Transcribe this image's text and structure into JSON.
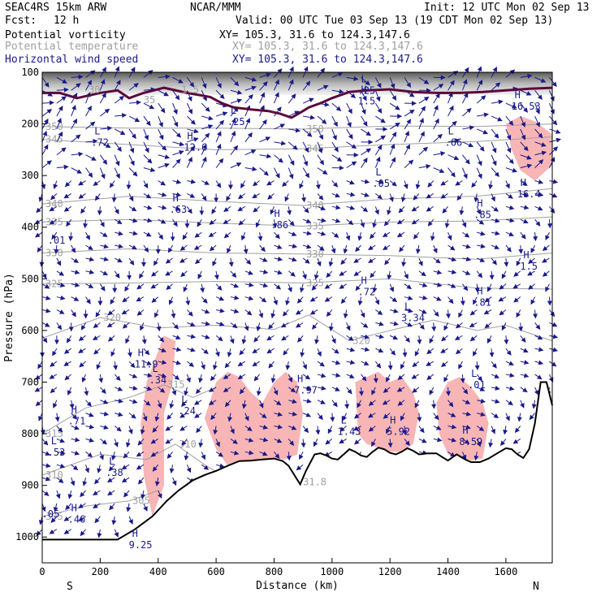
{
  "header": {
    "model": "SEAC4RS 15km ARW",
    "center": "NCAR/MMM",
    "init": "Init: 12 UTC Mon 02 Sep 13",
    "fcst_label": "Fcst:",
    "fcst_value": "12 h",
    "valid": "Valid: 00 UTC Tue 03 Sep 13 (19 CDT Mon 02 Sep 13)"
  },
  "fields": [
    {
      "name": "Potential vorticity",
      "xy": "XY= 105.3, 31.6 to 124.3,147.6",
      "color": "#000000"
    },
    {
      "name": "Potential temperature",
      "xy": "XY= 105.3, 31.6 to 124.3,147.6",
      "color": "#a0a0a0"
    },
    {
      "name": "Horizontal wind speed",
      "xy": "XY= 105.3, 31.6 to 124.3,147.6",
      "color": "#1a1a8c"
    }
  ],
  "chart_data": {
    "type": "cross-section",
    "xlabel": "Distance (km)",
    "ylabel": "Pressure (hPa)",
    "xlim": [
      0,
      1760
    ],
    "ylim": [
      1050,
      100
    ],
    "x_ticks": [
      "0",
      "200",
      "400",
      "600",
      "800",
      "1000",
      "1200",
      "1400",
      "1600"
    ],
    "y_ticks": [
      "100",
      "200",
      "300",
      "400",
      "500",
      "600",
      "700",
      "800",
      "900",
      "1000"
    ],
    "left_end": "S",
    "right_end": "N",
    "terrain": [
      [
        0,
        1005
      ],
      [
        80,
        1005
      ],
      [
        160,
        1005
      ],
      [
        260,
        1005
      ],
      [
        320,
        985
      ],
      [
        380,
        960
      ],
      [
        430,
        930
      ],
      [
        470,
        910
      ],
      [
        520,
        890
      ],
      [
        560,
        880
      ],
      [
        600,
        872
      ],
      [
        640,
        862
      ],
      [
        680,
        853
      ],
      [
        720,
        852
      ],
      [
        760,
        850
      ],
      [
        800,
        848
      ],
      [
        830,
        853
      ],
      [
        850,
        862
      ],
      [
        870,
        880
      ],
      [
        890,
        898
      ],
      [
        910,
        872
      ],
      [
        940,
        840
      ],
      [
        960,
        838
      ],
      [
        980,
        842
      ],
      [
        1000,
        848
      ],
      [
        1020,
        850
      ],
      [
        1040,
        840
      ],
      [
        1060,
        830
      ],
      [
        1080,
        835
      ],
      [
        1100,
        842
      ],
      [
        1120,
        845
      ],
      [
        1140,
        835
      ],
      [
        1160,
        827
      ],
      [
        1180,
        830
      ],
      [
        1200,
        837
      ],
      [
        1220,
        840
      ],
      [
        1240,
        835
      ],
      [
        1260,
        828
      ],
      [
        1280,
        833
      ],
      [
        1300,
        840
      ],
      [
        1330,
        838
      ],
      [
        1360,
        838
      ],
      [
        1380,
        845
      ],
      [
        1400,
        852
      ],
      [
        1430,
        840
      ],
      [
        1460,
        850
      ],
      [
        1480,
        855
      ],
      [
        1510,
        855
      ],
      [
        1540,
        848
      ],
      [
        1570,
        838
      ],
      [
        1600,
        828
      ],
      [
        1620,
        830
      ],
      [
        1640,
        840
      ],
      [
        1660,
        847
      ],
      [
        1680,
        830
      ],
      [
        1700,
        780
      ],
      [
        1720,
        700
      ],
      [
        1740,
        700
      ],
      [
        1760,
        745
      ]
    ],
    "theta_contours": [
      {
        "label": "350",
        "p": [
          [
            0,
            205
          ],
          [
            300,
            208
          ],
          [
            600,
            208
          ],
          [
            900,
            210
          ],
          [
            1200,
            204
          ],
          [
            1500,
            205
          ],
          [
            1760,
            200
          ]
        ]
      },
      {
        "label": "345",
        "p": [
          [
            0,
            230
          ],
          [
            300,
            240
          ],
          [
            600,
            250
          ],
          [
            900,
            248
          ],
          [
            1200,
            240
          ],
          [
            1500,
            234
          ],
          [
            1760,
            225
          ]
        ]
      },
      {
        "label": "340",
        "p": [
          [
            0,
            355
          ],
          [
            300,
            340
          ],
          [
            600,
            350
          ],
          [
            900,
            358
          ],
          [
            1200,
            345
          ],
          [
            1500,
            340
          ],
          [
            1760,
            325
          ]
        ]
      },
      {
        "label": "335",
        "p": [
          [
            0,
            390
          ],
          [
            300,
            385
          ],
          [
            600,
            392
          ],
          [
            900,
            398
          ],
          [
            1200,
            390
          ],
          [
            1500,
            388
          ],
          [
            1760,
            380
          ]
        ]
      },
      {
        "label": "330",
        "p": [
          [
            0,
            450
          ],
          [
            300,
            442
          ],
          [
            600,
            450
          ],
          [
            900,
            452
          ],
          [
            1200,
            455
          ],
          [
            1500,
            462
          ],
          [
            1760,
            450
          ]
        ]
      },
      {
        "label": "325",
        "p": [
          [
            0,
            510
          ],
          [
            300,
            508
          ],
          [
            600,
            505
          ],
          [
            900,
            508
          ],
          [
            1200,
            500
          ],
          [
            1500,
            518
          ],
          [
            1760,
            520
          ]
        ]
      },
      {
        "label": "320",
        "p": [
          [
            0,
            615
          ],
          [
            200,
            575
          ],
          [
            400,
            595
          ],
          [
            600,
            590
          ],
          [
            800,
            598
          ],
          [
            920,
            570
          ],
          [
            1060,
            620
          ],
          [
            1200,
            600
          ],
          [
            1350,
            580
          ],
          [
            1500,
            600
          ],
          [
            1600,
            590
          ],
          [
            1760,
            620
          ]
        ]
      },
      {
        "label": "315",
        "p": [
          [
            0,
            800
          ],
          [
            150,
            750
          ],
          [
            300,
            730
          ],
          [
            420,
            705
          ],
          [
            520,
            730
          ],
          [
            600,
            710
          ]
        ]
      },
      {
        "label": "310",
        "p": [
          [
            0,
            880
          ],
          [
            200,
            840
          ],
          [
            360,
            850
          ],
          [
            460,
            820
          ],
          [
            560,
            860
          ],
          [
            620,
            880
          ]
        ]
      },
      {
        "label": "305",
        "p": [
          [
            0,
            960
          ],
          [
            150,
            940
          ],
          [
            300,
            930
          ],
          [
            400,
            910
          ]
        ]
      }
    ],
    "pv_contours": [
      {
        "label": "1.5",
        "p": [
          [
            0,
            140
          ],
          [
            60,
            140
          ],
          [
            120,
            150
          ],
          [
            200,
            140
          ],
          [
            260,
            135
          ],
          [
            300,
            150
          ],
          [
            350,
            140
          ],
          [
            420,
            130
          ],
          [
            500,
            140
          ],
          [
            580,
            148
          ],
          [
            620,
            160
          ],
          [
            660,
            168
          ],
          [
            720,
            172
          ],
          [
            780,
            175
          ],
          [
            820,
            180
          ],
          [
            860,
            188
          ],
          [
            900,
            175
          ],
          [
            920,
            168
          ],
          [
            960,
            160
          ],
          [
            1000,
            150
          ],
          [
            1060,
            138
          ],
          [
            1120,
            135
          ],
          [
            1200,
            133
          ],
          [
            1280,
            138
          ],
          [
            1360,
            140
          ],
          [
            1440,
            140
          ],
          [
            1520,
            138
          ],
          [
            1600,
            135
          ],
          [
            1680,
            132
          ],
          [
            1760,
            130
          ]
        ]
      }
    ],
    "wind_speed_shading": [
      {
        "label": "high speed band",
        "p": [
          [
            360,
            700
          ],
          [
            420,
            610
          ],
          [
            460,
            620
          ],
          [
            450,
            700
          ],
          [
            420,
            760
          ],
          [
            420,
            900
          ],
          [
            380,
            960
          ],
          [
            350,
            880
          ],
          [
            340,
            780
          ]
        ]
      },
      {
        "label": "high speed band",
        "p": [
          [
            560,
            770
          ],
          [
            600,
            700
          ],
          [
            640,
            680
          ],
          [
            680,
            690
          ],
          [
            720,
            720
          ],
          [
            760,
            740
          ],
          [
            800,
            700
          ],
          [
            840,
            680
          ],
          [
            880,
            700
          ],
          [
            900,
            760
          ],
          [
            880,
            840
          ],
          [
            840,
            850
          ],
          [
            800,
            848
          ],
          [
            760,
            850
          ],
          [
            720,
            852
          ],
          [
            680,
            853
          ],
          [
            640,
            862
          ],
          [
            600,
            830
          ]
        ]
      },
      {
        "label": "high speed band",
        "p": [
          [
            1080,
            700
          ],
          [
            1120,
            690
          ],
          [
            1160,
            680
          ],
          [
            1200,
            700
          ],
          [
            1240,
            690
          ],
          [
            1280,
            720
          ],
          [
            1300,
            760
          ],
          [
            1280,
            820
          ],
          [
            1240,
            835
          ],
          [
            1200,
            835
          ],
          [
            1160,
            827
          ],
          [
            1120,
            820
          ],
          [
            1090,
            800
          ]
        ]
      },
      {
        "label": "high speed band",
        "p": [
          [
            1360,
            740
          ],
          [
            1400,
            700
          ],
          [
            1440,
            690
          ],
          [
            1480,
            710
          ],
          [
            1520,
            740
          ],
          [
            1540,
            780
          ],
          [
            1520,
            848
          ],
          [
            1480,
            852
          ],
          [
            1440,
            845
          ],
          [
            1400,
            840
          ],
          [
            1370,
            800
          ]
        ]
      },
      {
        "label": "high speed band",
        "p": [
          [
            1600,
            200
          ],
          [
            1650,
            185
          ],
          [
            1700,
            195
          ],
          [
            1760,
            220
          ],
          [
            1760,
            280
          ],
          [
            1700,
            310
          ],
          [
            1650,
            290
          ],
          [
            1620,
            250
          ]
        ]
      }
    ],
    "extrema_labels": [
      {
        "t": "H",
        "x": 310,
        "p": 1000,
        "v": "9.25"
      },
      {
        "t": "H",
        "x": 100,
        "p": 950,
        "v": ".46"
      },
      {
        "t": "H",
        "x": 100,
        "p": 760,
        "v": ".71"
      },
      {
        "t": "L",
        "x": 30,
        "p": 820,
        "v": ".53"
      },
      {
        "t": "L",
        "x": 230,
        "p": 860,
        "v": ".38"
      },
      {
        "t": "L",
        "x": 480,
        "p": 740,
        "v": ".24"
      },
      {
        "t": "H",
        "x": 330,
        "p": 650,
        "v": "11.9"
      },
      {
        "t": "L",
        "x": 380,
        "p": 680,
        "v": ".34"
      },
      {
        "t": "H",
        "x": 880,
        "p": 700,
        "v": "7.97"
      },
      {
        "t": "L",
        "x": 1030,
        "p": 780,
        "v": "1.43"
      },
      {
        "t": "H",
        "x": 1200,
        "p": 780,
        "v": "5.92"
      },
      {
        "t": "H",
        "x": 1450,
        "p": 800,
        "v": "8.59"
      },
      {
        "t": "L",
        "x": 1480,
        "p": 690,
        "v": ".01"
      },
      {
        "t": "L",
        "x": 1250,
        "p": 560,
        "v": "3.34"
      },
      {
        "t": "H",
        "x": 1100,
        "p": 510,
        "v": ".72"
      },
      {
        "t": "H",
        "x": 1500,
        "p": 530,
        "v": ".81"
      },
      {
        "t": "H",
        "x": 1660,
        "p": 460,
        "v": "1.5"
      },
      {
        "t": "H",
        "x": 800,
        "p": 380,
        "v": ".86"
      },
      {
        "t": "H",
        "x": 450,
        "p": 350,
        "v": ".63"
      },
      {
        "t": "H",
        "x": 1500,
        "p": 360,
        "v": ".85"
      },
      {
        "t": "H",
        "x": 1650,
        "p": 320,
        "v": "16.4"
      },
      {
        "t": "L",
        "x": 1150,
        "p": 300,
        "v": ".05"
      },
      {
        "t": "H",
        "x": 500,
        "p": 230,
        "v": "12.6"
      },
      {
        "t": "L",
        "x": 180,
        "p": 220,
        "v": ".72"
      },
      {
        "t": "L",
        "x": 650,
        "p": 180,
        "v": ".25"
      },
      {
        "t": "L",
        "x": 1400,
        "p": 220,
        "v": ".66"
      },
      {
        "t": "H",
        "x": 1630,
        "p": 150,
        "v": "16.53"
      },
      {
        "t": "L",
        "x": 1100,
        "p": 120,
        "v": ".25"
      },
      {
        "t": "H",
        "x": 1100,
        "p": 140,
        "v": "1.5"
      },
      {
        "t": "",
        "x": 30,
        "p": 410,
        "v": ".01"
      },
      {
        "t": "",
        "x": 10,
        "p": 940,
        "v": ".05"
      }
    ],
    "other_labels": [
      {
        "x": 900,
        "p": 900,
        "v": "31.8"
      },
      {
        "x": 480,
        "p": 140,
        "v": "1.5"
      },
      {
        "x": 350,
        "p": 160,
        "v": "35"
      },
      {
        "x": 160,
        "p": 140,
        "v": "30"
      }
    ]
  }
}
